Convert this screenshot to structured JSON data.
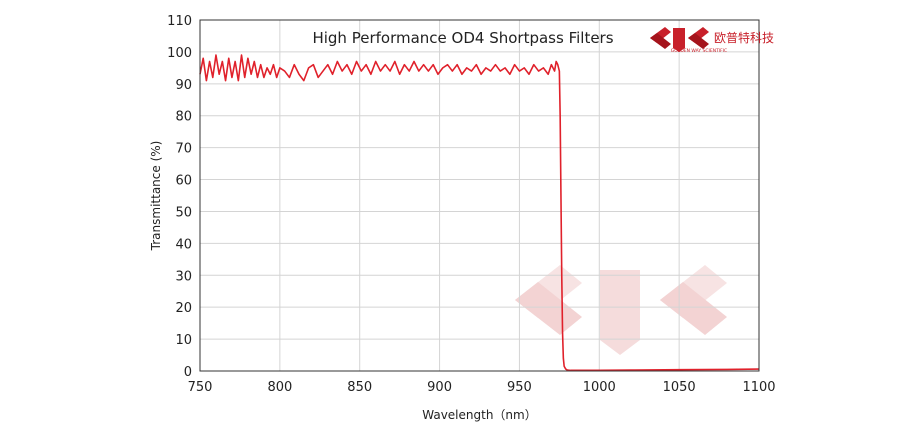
{
  "chart_data": {
    "type": "line",
    "title": "High Performance OD4 Shortpass  Filters",
    "xlabel": "Wavelength（nm）",
    "ylabel": "Transmittance  (%)",
    "xlim": [
      750,
      1100
    ],
    "ylim": [
      0,
      110
    ],
    "xticks": [
      "750",
      "800",
      "850",
      "900",
      "950",
      "1000",
      "1050",
      "1100"
    ],
    "yticks": [
      "0",
      "10",
      "20",
      "30",
      "40",
      "50",
      "60",
      "70",
      "80",
      "90",
      "100",
      "110"
    ],
    "grid": true,
    "series": [
      {
        "color": "#e0212b",
        "x": [
          750,
          752,
          754,
          756,
          758,
          760,
          762,
          764,
          766,
          768,
          770,
          772,
          774,
          776,
          778,
          780,
          782,
          784,
          786,
          788,
          790,
          792,
          794,
          796,
          798,
          800,
          803,
          806,
          809,
          812,
          815,
          818,
          821,
          824,
          827,
          830,
          833,
          836,
          839,
          842,
          845,
          848,
          851,
          854,
          857,
          860,
          863,
          866,
          869,
          872,
          875,
          878,
          881,
          884,
          887,
          890,
          893,
          896,
          899,
          902,
          905,
          908,
          911,
          914,
          917,
          920,
          923,
          926,
          929,
          932,
          935,
          938,
          941,
          944,
          947,
          950,
          953,
          956,
          959,
          962,
          965,
          968,
          970,
          972,
          973,
          974,
          975,
          975.5,
          976,
          976.5,
          977,
          977.5,
          978,
          979,
          980,
          982,
          985,
          990,
          1000,
          1020,
          1050,
          1080,
          1100
        ],
        "y": [
          93,
          98,
          91,
          97,
          92,
          99,
          93,
          97,
          91,
          98,
          92,
          97,
          91,
          99,
          92,
          98,
          93,
          97,
          92,
          96,
          92,
          95,
          93,
          96,
          92,
          95,
          94,
          92,
          96,
          93,
          91,
          95,
          96,
          92,
          94,
          96,
          93,
          97,
          94,
          96,
          93,
          97,
          94,
          96,
          93,
          97,
          94,
          96,
          94,
          97,
          93,
          96,
          94,
          97,
          94,
          96,
          94,
          96,
          93,
          95,
          96,
          94,
          96,
          93,
          95,
          94,
          96,
          93,
          95,
          94,
          96,
          94,
          95,
          93,
          96,
          94,
          95,
          93,
          96,
          94,
          95,
          93,
          96,
          94,
          97,
          96,
          94,
          80,
          55,
          30,
          12,
          4,
          1.5,
          0.6,
          0.3,
          0.2,
          0.2,
          0.2,
          0.2,
          0.3,
          0.4,
          0.5,
          0.6
        ]
      }
    ]
  },
  "logo": {
    "name": "欧普特科技",
    "tagline": "GOLDEN WAY SCIENTIFIC",
    "icon": "jc-logo-icon",
    "color": "#c8202a"
  }
}
